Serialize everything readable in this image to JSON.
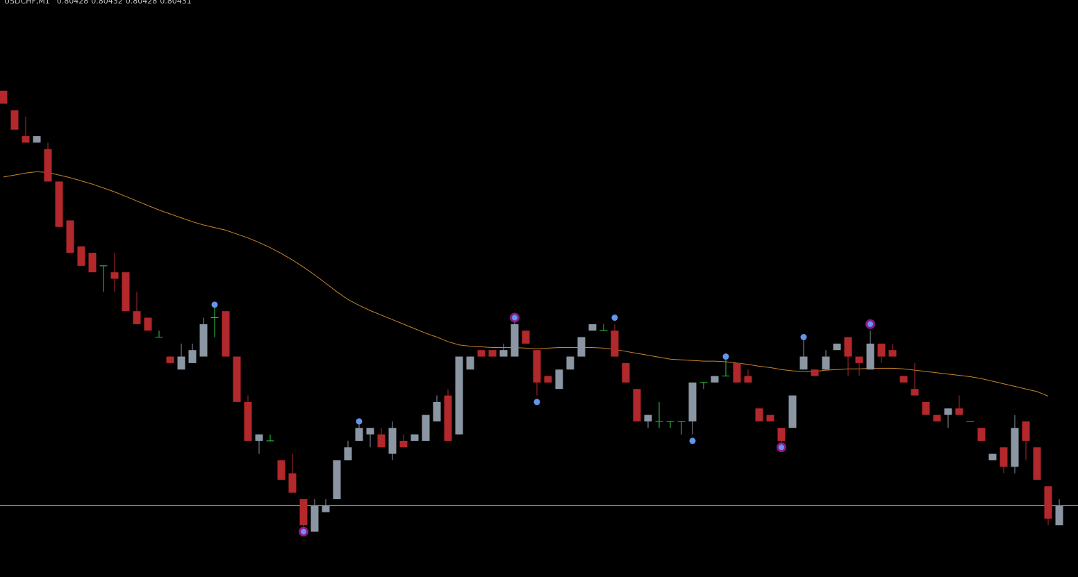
{
  "chart_data": {
    "type": "candlestick",
    "title": "USDCHF,M1",
    "ylim": [
      0.8042,
      0.80509
    ],
    "up_color": "#8b96a3",
    "down_color": "#b3282b",
    "doji_color": "#2ecc40",
    "open": [
      0.80495,
      0.80492,
      0.80488,
      0.80487,
      0.80486,
      0.80481,
      0.80475,
      0.80471,
      0.8047,
      0.80468,
      0.80467,
      0.80467,
      0.80461,
      0.8046,
      0.80457,
      0.80454,
      0.80452,
      0.80453,
      0.80454,
      0.8046,
      0.80461,
      0.80454,
      0.80447,
      0.80441,
      0.80441,
      0.80438,
      0.80436,
      0.80432,
      0.80427,
      0.8043,
      0.80432,
      0.80438,
      0.80441,
      0.80442,
      0.80442,
      0.80439,
      0.80441,
      0.80441,
      0.80441,
      0.80444,
      0.80448,
      0.80442,
      0.80452,
      0.80455,
      0.80455,
      0.80454,
      0.80454,
      0.80458,
      0.80455,
      0.80451,
      0.80449,
      0.80452,
      0.80454,
      0.80458,
      0.80458,
      0.80458,
      0.80453,
      0.80449,
      0.80444,
      0.80444,
      0.80444,
      0.80444,
      0.80444,
      0.8045,
      0.8045,
      0.80451,
      0.80453,
      0.80451,
      0.80446,
      0.80445,
      0.80443,
      0.80443,
      0.80452,
      0.80452,
      0.80452,
      0.80455,
      0.80457,
      0.80454,
      0.80452,
      0.80456,
      0.80455,
      0.80451,
      0.80449,
      0.80447,
      0.80445,
      0.80445,
      0.80446,
      0.80444,
      0.80443,
      0.80438,
      0.8044,
      0.80437,
      0.80444,
      0.8044,
      0.80434,
      0.80428
    ],
    "high": [
      0.80495,
      0.80492,
      0.80491,
      0.80488,
      0.80487,
      0.80481,
      0.80475,
      0.80471,
      0.8047,
      0.80468,
      0.8047,
      0.80467,
      0.80464,
      0.8046,
      0.80458,
      0.80454,
      0.80456,
      0.80456,
      0.8046,
      0.80462,
      0.80461,
      0.80454,
      0.80448,
      0.80442,
      0.80442,
      0.80438,
      0.80439,
      0.80432,
      0.80432,
      0.80432,
      0.80438,
      0.80441,
      0.80444,
      0.80443,
      0.80443,
      0.80444,
      0.80442,
      0.80442,
      0.80445,
      0.80448,
      0.80449,
      0.80454,
      0.80454,
      0.80455,
      0.80455,
      0.80456,
      0.8046,
      0.80458,
      0.80455,
      0.80451,
      0.80452,
      0.80454,
      0.80457,
      0.80459,
      0.80459,
      0.80459,
      0.80453,
      0.80449,
      0.80445,
      0.80447,
      0.80444,
      0.80444,
      0.8045,
      0.8045,
      0.80451,
      0.80454,
      0.80453,
      0.80452,
      0.80446,
      0.80445,
      0.80443,
      0.80448,
      0.80457,
      0.80452,
      0.80455,
      0.80456,
      0.80457,
      0.80454,
      0.80458,
      0.80456,
      0.80456,
      0.80451,
      0.80453,
      0.80447,
      0.80445,
      0.80446,
      0.80448,
      0.80444,
      0.80443,
      0.80439,
      0.8044,
      0.80445,
      0.80444,
      0.8044,
      0.80434,
      0.80432
    ],
    "low": [
      0.80493,
      0.80489,
      0.80487,
      0.80487,
      0.80481,
      0.80474,
      0.8047,
      0.80468,
      0.80467,
      0.80464,
      0.80464,
      0.80461,
      0.80459,
      0.80458,
      0.80457,
      0.80453,
      0.80452,
      0.80453,
      0.80454,
      0.80457,
      0.80454,
      0.80447,
      0.80441,
      0.80439,
      0.80441,
      0.80435,
      0.80433,
      0.80427,
      0.80427,
      0.8043,
      0.80432,
      0.80438,
      0.80441,
      0.8044,
      0.8044,
      0.80438,
      0.8044,
      0.80441,
      0.80441,
      0.80444,
      0.80441,
      0.80442,
      0.80452,
      0.80454,
      0.80454,
      0.80454,
      0.80454,
      0.80456,
      0.80448,
      0.8045,
      0.80449,
      0.80452,
      0.80454,
      0.80458,
      0.80458,
      0.80454,
      0.8045,
      0.80444,
      0.80443,
      0.80443,
      0.80443,
      0.80442,
      0.80442,
      0.80449,
      0.8045,
      0.80451,
      0.8045,
      0.8045,
      0.80444,
      0.80444,
      0.8044,
      0.80443,
      0.80452,
      0.80451,
      0.80452,
      0.80455,
      0.80451,
      0.80451,
      0.80452,
      0.80453,
      0.80454,
      0.8045,
      0.80448,
      0.80445,
      0.80444,
      0.80443,
      0.80445,
      0.80444,
      0.80441,
      0.80438,
      0.80436,
      0.80436,
      0.80438,
      0.80435,
      0.80428,
      0.80428
    ],
    "close": [
      0.80493,
      0.80489,
      0.80487,
      0.80488,
      0.80481,
      0.80474,
      0.8047,
      0.80468,
      0.80467,
      0.80468,
      0.80466,
      0.80461,
      0.80459,
      0.80458,
      0.80457,
      0.80453,
      0.80454,
      0.80455,
      0.80459,
      0.8046,
      0.80454,
      0.80447,
      0.80441,
      0.80442,
      0.80441,
      0.80435,
      0.80433,
      0.80428,
      0.80431,
      0.80431,
      0.80438,
      0.8044,
      0.80443,
      0.80443,
      0.8044,
      0.80443,
      0.8044,
      0.80442,
      0.80445,
      0.80447,
      0.80441,
      0.80454,
      0.80454,
      0.80454,
      0.80454,
      0.80455,
      0.80459,
      0.80456,
      0.8045,
      0.8045,
      0.80452,
      0.80454,
      0.80457,
      0.80459,
      0.80458,
      0.80454,
      0.8045,
      0.80444,
      0.80445,
      0.80444,
      0.80444,
      0.80444,
      0.8045,
      0.8045,
      0.80451,
      0.80451,
      0.8045,
      0.8045,
      0.80444,
      0.80444,
      0.80441,
      0.80448,
      0.80454,
      0.80451,
      0.80454,
      0.80456,
      0.80454,
      0.80453,
      0.80456,
      0.80454,
      0.80454,
      0.8045,
      0.80448,
      0.80445,
      0.80444,
      0.80446,
      0.80445,
      0.80444,
      0.80441,
      0.80439,
      0.80437,
      0.80443,
      0.80441,
      0.80435,
      0.80429,
      0.80431
    ],
    "moving_average": {
      "color": "#c8862a",
      "values": [
        0.804817,
        0.80482,
        0.804823,
        0.804825,
        0.804824,
        0.80482,
        0.804816,
        0.804811,
        0.804806,
        0.8048,
        0.804794,
        0.804787,
        0.80478,
        0.804773,
        0.804766,
        0.80476,
        0.804754,
        0.804748,
        0.804743,
        0.804739,
        0.804735,
        0.804729,
        0.804723,
        0.804716,
        0.804708,
        0.804699,
        0.804689,
        0.804678,
        0.804666,
        0.804653,
        0.80464,
        0.804628,
        0.804619,
        0.804611,
        0.804604,
        0.804597,
        0.80459,
        0.804583,
        0.804576,
        0.80457,
        0.804563,
        0.804558,
        0.804556,
        0.804555,
        0.804554,
        0.804554,
        0.804554,
        0.804553,
        0.804552,
        0.804553,
        0.804554,
        0.804554,
        0.804554,
        0.804554,
        0.804553,
        0.804551,
        0.804548,
        0.804545,
        0.804542,
        0.804539,
        0.804536,
        0.804535,
        0.804534,
        0.804533,
        0.804533,
        0.804532,
        0.80453,
        0.804528,
        0.804525,
        0.804523,
        0.80452,
        0.804518,
        0.804517,
        0.804517,
        0.804519,
        0.80452,
        0.804521,
        0.804521,
        0.804522,
        0.804522,
        0.804522,
        0.804521,
        0.804519,
        0.804517,
        0.804515,
        0.804513,
        0.804511,
        0.804509,
        0.804506,
        0.804502,
        0.804498,
        0.804494,
        0.80449,
        0.804486,
        0.804479,
        null
      ]
    },
    "markers": [
      {
        "color": "#6495ed",
        "values": [
          null,
          null,
          null,
          null,
          null,
          null,
          null,
          null,
          null,
          null,
          null,
          null,
          null,
          null,
          null,
          null,
          null,
          null,
          null,
          0.80462,
          null,
          null,
          null,
          null,
          null,
          null,
          null,
          null,
          null,
          null,
          null,
          null,
          0.80444,
          null,
          null,
          null,
          null,
          null,
          null,
          null,
          null,
          null,
          null,
          null,
          null,
          null,
          null,
          null,
          0.80447,
          null,
          null,
          null,
          null,
          null,
          null,
          0.8046,
          null,
          null,
          null,
          null,
          null,
          null,
          0.80441,
          null,
          null,
          0.80454,
          null,
          null,
          null,
          null,
          null,
          null,
          0.80457,
          null,
          null,
          null,
          null,
          null,
          null,
          null,
          null,
          null,
          null,
          null,
          null,
          null,
          null,
          null,
          null,
          null,
          null,
          null,
          null,
          null,
          null,
          null
        ]
      },
      {
        "color": "#8b1a8b",
        "values": [
          null,
          null,
          null,
          null,
          null,
          null,
          null,
          null,
          null,
          null,
          null,
          null,
          null,
          null,
          null,
          null,
          null,
          null,
          null,
          null,
          null,
          null,
          null,
          null,
          null,
          null,
          null,
          0.80427,
          null,
          null,
          null,
          null,
          null,
          null,
          null,
          null,
          null,
          null,
          null,
          null,
          null,
          null,
          null,
          null,
          null,
          null,
          0.8046,
          null,
          null,
          null,
          null,
          null,
          null,
          null,
          null,
          null,
          null,
          null,
          null,
          null,
          null,
          null,
          null,
          null,
          null,
          null,
          null,
          null,
          null,
          null,
          0.8044,
          null,
          null,
          null,
          null,
          null,
          null,
          null,
          0.80459,
          null,
          null,
          null,
          null,
          null,
          null,
          null,
          null,
          null,
          null,
          null,
          null,
          null,
          null,
          null,
          null,
          null
        ]
      }
    ]
  }
}
